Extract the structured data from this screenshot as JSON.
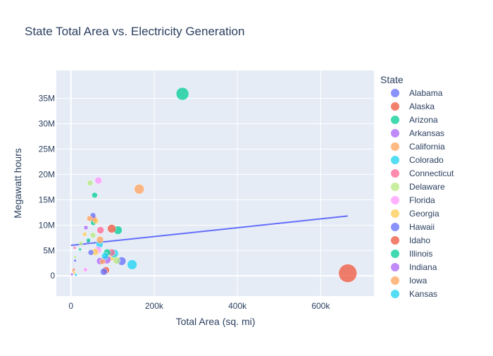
{
  "chart_data": {
    "type": "scatter",
    "title": "State Total Area vs. Electricity Generation",
    "xlabel": "Total Area (sq. mi)",
    "ylabel": "Megawatt hours",
    "xlim": [
      -35000,
      728000
    ],
    "ylim": [
      -4000000,
      40500000
    ],
    "x_ticks": [
      {
        "value": 0,
        "label": "0"
      },
      {
        "value": 200000,
        "label": "200k"
      },
      {
        "value": 400000,
        "label": "400k"
      },
      {
        "value": 600000,
        "label": "600k"
      }
    ],
    "y_ticks": [
      {
        "value": 0,
        "label": "0"
      },
      {
        "value": 5000000,
        "label": "5M"
      },
      {
        "value": 10000000,
        "label": "10M"
      },
      {
        "value": 15000000,
        "label": "15M"
      },
      {
        "value": 20000000,
        "label": "20M"
      },
      {
        "value": 25000000,
        "label": "25M"
      },
      {
        "value": 30000000,
        "label": "30M"
      },
      {
        "value": 35000000,
        "label": "35M"
      }
    ],
    "grid": true,
    "legend_position": "right",
    "legend_title": "State",
    "trendline": {
      "x": [
        0,
        665000
      ],
      "y": [
        6000000,
        11800000
      ],
      "color": "#636efa"
    },
    "series": [
      {
        "name": "Alabama",
        "color": "#636efa"
      },
      {
        "name": "Alaska",
        "color": "#EF553B"
      },
      {
        "name": "Arizona",
        "color": "#00cc96"
      },
      {
        "name": "Arkansas",
        "color": "#ab63fa"
      },
      {
        "name": "California",
        "color": "#FFA15A"
      },
      {
        "name": "Colorado",
        "color": "#19d3f3"
      },
      {
        "name": "Connecticut",
        "color": "#FF6692"
      },
      {
        "name": "Delaware",
        "color": "#B6E880"
      },
      {
        "name": "Florida",
        "color": "#FF97FF"
      },
      {
        "name": "Georgia",
        "color": "#FECB52"
      },
      {
        "name": "Hawaii",
        "color": "#636efa"
      },
      {
        "name": "Idaho",
        "color": "#EF553B"
      },
      {
        "name": "Illinois",
        "color": "#00cc96"
      },
      {
        "name": "Indiana",
        "color": "#ab63fa"
      },
      {
        "name": "Iowa",
        "color": "#FFA15A"
      },
      {
        "name": "Kansas",
        "color": "#19d3f3"
      }
    ],
    "points": [
      {
        "x": 665000,
        "y": 500000,
        "r": 13,
        "color": "#EF553B"
      },
      {
        "x": 268000,
        "y": 35900000,
        "r": 9,
        "color": "#00cc96"
      },
      {
        "x": 164000,
        "y": 17100000,
        "r": 7,
        "color": "#FFA15A"
      },
      {
        "x": 147000,
        "y": 2200000,
        "r": 7,
        "color": "#19d3f3"
      },
      {
        "x": 122000,
        "y": 2900000,
        "r": 6,
        "color": "#636efa"
      },
      {
        "x": 113000,
        "y": 9000000,
        "r": 6,
        "color": "#00cc96"
      },
      {
        "x": 104000,
        "y": 4400000,
        "r": 6,
        "color": "#19d3f3"
      },
      {
        "x": 98000,
        "y": 9300000,
        "r": 6,
        "color": "#EF553B"
      },
      {
        "x": 97000,
        "y": 3900000,
        "r": 7,
        "color": "#FECB52"
      },
      {
        "x": 98000,
        "y": 4600000,
        "r": 5,
        "color": "#FF6692"
      },
      {
        "x": 110000,
        "y": 3000000,
        "r": 5,
        "color": "#B6E880"
      },
      {
        "x": 84000,
        "y": 1100000,
        "r": 5,
        "color": "#EF553B"
      },
      {
        "x": 79000,
        "y": 800000,
        "r": 5,
        "color": "#636efa"
      },
      {
        "x": 86000,
        "y": 3200000,
        "r": 6,
        "color": "#ab63fa"
      },
      {
        "x": 87000,
        "y": 4600000,
        "r": 5,
        "color": "#00cc96"
      },
      {
        "x": 82000,
        "y": 3900000,
        "r": 5,
        "color": "#19d3f3"
      },
      {
        "x": 70000,
        "y": 2900000,
        "r": 5,
        "color": "#ab63fa"
      },
      {
        "x": 76000,
        "y": 2800000,
        "r": 4,
        "color": "#FFA15A"
      },
      {
        "x": 69000,
        "y": 6200000,
        "r": 5,
        "color": "#19d3f3"
      },
      {
        "x": 71000,
        "y": 9000000,
        "r": 5,
        "color": "#FF6692"
      },
      {
        "x": 70000,
        "y": 7100000,
        "r": 5,
        "color": "#FFA15A"
      },
      {
        "x": 66000,
        "y": 18800000,
        "r": 5,
        "color": "#FF97FF"
      },
      {
        "x": 65000,
        "y": 5100000,
        "r": 5,
        "color": "#FF97FF"
      },
      {
        "x": 58000,
        "y": 4700000,
        "r": 5,
        "color": "#FECB52"
      },
      {
        "x": 57000,
        "y": 15900000,
        "r": 4,
        "color": "#00cc96"
      },
      {
        "x": 54000,
        "y": 10500000,
        "r": 4,
        "color": "#00cc96"
      },
      {
        "x": 56000,
        "y": 11200000,
        "r": 4,
        "color": "#EF553B"
      },
      {
        "x": 53000,
        "y": 11900000,
        "r": 4,
        "color": "#636efa"
      },
      {
        "x": 60000,
        "y": 10800000,
        "r": 4,
        "color": "#FECB52"
      },
      {
        "x": 53000,
        "y": 8000000,
        "r": 4,
        "color": "#B6E880"
      },
      {
        "x": 45000,
        "y": 11300000,
        "r": 4,
        "color": "#FFA15A"
      },
      {
        "x": 46000,
        "y": 18300000,
        "r": 4,
        "color": "#B6E880"
      },
      {
        "x": 48000,
        "y": 4600000,
        "r": 4,
        "color": "#636efa"
      },
      {
        "x": 42000,
        "y": 6600000,
        "r": 3,
        "color": "#636efa"
      },
      {
        "x": 42000,
        "y": 7000000,
        "r": 3,
        "color": "#00cc96"
      },
      {
        "x": 36000,
        "y": 9500000,
        "r": 3,
        "color": "#ab63fa"
      },
      {
        "x": 33000,
        "y": 8200000,
        "r": 3,
        "color": "#FECB52"
      },
      {
        "x": 35000,
        "y": 1200000,
        "r": 3,
        "color": "#FF97FF"
      },
      {
        "x": 24000,
        "y": 6400000,
        "r": 3,
        "color": "#B6E880"
      },
      {
        "x": 10000,
        "y": 3000000,
        "r": 2,
        "color": "#636efa"
      },
      {
        "x": 10500,
        "y": 3700000,
        "r": 2,
        "color": "#B6E880"
      },
      {
        "x": 7000,
        "y": 1200000,
        "r": 2,
        "color": "#EF553B"
      },
      {
        "x": 5500,
        "y": 1000000,
        "r": 2,
        "color": "#FFA15A"
      },
      {
        "x": 2500,
        "y": 300000,
        "r": 2,
        "color": "#ab63fa"
      },
      {
        "x": 12000,
        "y": 200000,
        "r": 2,
        "color": "#19d3f3"
      },
      {
        "x": 9000,
        "y": 5500000,
        "r": 2,
        "color": "#FF6692"
      },
      {
        "x": 8000,
        "y": 600000,
        "r": 2,
        "color": "#FECB52"
      },
      {
        "x": 22000,
        "y": 5200000,
        "r": 2,
        "color": "#00cc96"
      }
    ]
  }
}
